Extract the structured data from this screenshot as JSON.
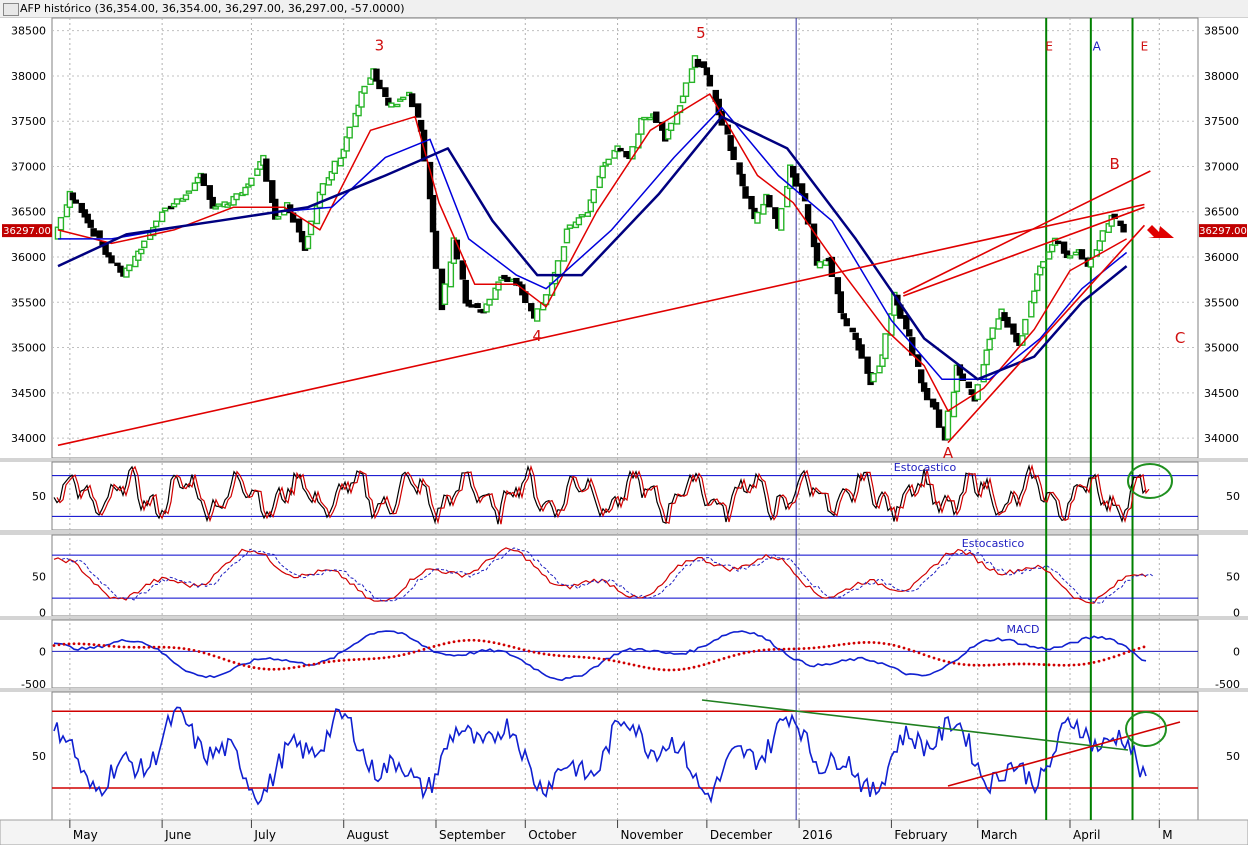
{
  "window": {
    "title": "AFP histórico (36,354.00, 36,354.00, 36,297.00, 36,297.00, -57.0000)"
  },
  "colors": {
    "up_bar": "#27b427",
    "down_bar": "#000000",
    "ema_fast": "#e00000",
    "ema_mid": "#0000dd",
    "ema_slow": "#000080",
    "trendline": "#e00000",
    "green_line": "#008000",
    "ref_line": "#0000cc"
  },
  "chart_data": [
    {
      "type": "candlestick",
      "title": "AFP histórico",
      "y_ticks": [
        34000,
        34500,
        35000,
        35500,
        36000,
        36500,
        37000,
        37500,
        38000,
        38500
      ],
      "ylim": [
        33780,
        38640
      ],
      "x_ticks": [
        "May",
        "June",
        "July",
        "August",
        "September",
        "October",
        "November",
        "December",
        "2016",
        "February",
        "March",
        "April",
        "M"
      ],
      "last_price_label": "36297.00",
      "price_path": [
        [
          "2015-04-27",
          36200
        ],
        [
          "2015-05-02",
          36700
        ],
        [
          "2015-05-08",
          36400
        ],
        [
          "2015-05-14",
          36050
        ],
        [
          "2015-05-20",
          35800
        ],
        [
          "2015-05-26",
          36100
        ],
        [
          "2015-06-02",
          36500
        ],
        [
          "2015-06-09",
          36650
        ],
        [
          "2015-06-15",
          36900
        ],
        [
          "2015-06-19",
          36550
        ],
        [
          "2015-06-25",
          36600
        ],
        [
          "2015-06-30",
          36750
        ],
        [
          "2015-07-06",
          37100
        ],
        [
          "2015-07-10",
          36400
        ],
        [
          "2015-07-14",
          36600
        ],
        [
          "2015-07-20",
          36100
        ],
        [
          "2015-07-25",
          36700
        ],
        [
          "2015-08-02",
          37200
        ],
        [
          "2015-08-08",
          37800
        ],
        [
          "2015-08-12",
          38050
        ],
        [
          "2015-08-17",
          37650
        ],
        [
          "2015-08-24",
          37800
        ],
        [
          "2015-08-28",
          37400
        ],
        [
          "2015-09-01",
          36300
        ],
        [
          "2015-09-04",
          35450
        ],
        [
          "2015-09-08",
          36200
        ],
        [
          "2015-09-12",
          35500
        ],
        [
          "2015-09-18",
          35400
        ],
        [
          "2015-09-24",
          35800
        ],
        [
          "2015-09-30",
          35700
        ],
        [
          "2015-10-05",
          35300
        ],
        [
          "2015-10-08",
          35500
        ],
        [
          "2015-10-12",
          35800
        ],
        [
          "2015-10-16",
          36300
        ],
        [
          "2015-10-23",
          36500
        ],
        [
          "2015-10-28",
          37000
        ],
        [
          "2015-11-02",
          37200
        ],
        [
          "2015-11-06",
          37100
        ],
        [
          "2015-11-10",
          37500
        ],
        [
          "2015-11-14",
          37600
        ],
        [
          "2015-11-18",
          37300
        ],
        [
          "2015-11-24",
          37800
        ],
        [
          "2015-11-28",
          38200
        ],
        [
          "2015-12-02",
          38000
        ],
        [
          "2015-12-06",
          37600
        ],
        [
          "2015-12-10",
          37200
        ],
        [
          "2015-12-14",
          36800
        ],
        [
          "2015-12-18",
          36400
        ],
        [
          "2015-12-22",
          36700
        ],
        [
          "2015-12-26",
          36300
        ],
        [
          "2015-12-30",
          37000
        ],
        [
          "2016-01-04",
          36600
        ],
        [
          "2016-01-08",
          35900
        ],
        [
          "2016-01-12",
          36000
        ],
        [
          "2016-01-16",
          35400
        ],
        [
          "2016-01-22",
          35000
        ],
        [
          "2016-01-26",
          34600
        ],
        [
          "2016-01-30",
          34900
        ],
        [
          "2016-02-03",
          35600
        ],
        [
          "2016-02-08",
          35100
        ],
        [
          "2016-02-12",
          34600
        ],
        [
          "2016-02-17",
          34300
        ],
        [
          "2016-02-20",
          34000
        ],
        [
          "2016-02-24",
          34800
        ],
        [
          "2016-03-01",
          34400
        ],
        [
          "2016-03-05",
          35000
        ],
        [
          "2016-03-10",
          35400
        ],
        [
          "2016-03-16",
          35000
        ],
        [
          "2016-03-22",
          35800
        ],
        [
          "2016-03-28",
          36200
        ],
        [
          "2016-04-01",
          36000
        ],
        [
          "2016-04-05",
          36100
        ],
        [
          "2016-04-08",
          35900
        ],
        [
          "2016-04-12",
          36200
        ],
        [
          "2016-04-16",
          36450
        ],
        [
          "2016-04-20",
          36300
        ]
      ],
      "series": [
        {
          "name": "",
          "color": "ema_fast",
          "points": [
            [
              "2015-04-27",
              36300
            ],
            [
              "2015-05-15",
              36150
            ],
            [
              "2015-06-05",
              36300
            ],
            [
              "2015-06-25",
              36550
            ],
            [
              "2015-07-12",
              36550
            ],
            [
              "2015-07-24",
              36300
            ],
            [
              "2015-08-10",
              37400
            ],
            [
              "2015-08-25",
              37550
            ],
            [
              "2015-09-02",
              36600
            ],
            [
              "2015-09-14",
              35700
            ],
            [
              "2015-09-28",
              35700
            ],
            [
              "2015-10-08",
              35450
            ],
            [
              "2015-10-25",
              36500
            ],
            [
              "2015-11-12",
              37400
            ],
            [
              "2015-12-02",
              37800
            ],
            [
              "2015-12-18",
              36900
            ],
            [
              "2015-12-30",
              36600
            ],
            [
              "2016-01-14",
              35900
            ],
            [
              "2016-01-30",
              35200
            ],
            [
              "2016-02-12",
              34800
            ],
            [
              "2016-02-20",
              34300
            ],
            [
              "2016-03-03",
              34550
            ],
            [
              "2016-03-20",
              35200
            ],
            [
              "2016-04-01",
              35850
            ],
            [
              "2016-04-20",
              36200
            ]
          ]
        },
        {
          "name": "",
          "color": "ema_mid",
          "points": [
            [
              "2015-04-27",
              36200
            ],
            [
              "2015-05-15",
              36200
            ],
            [
              "2015-06-10",
              36350
            ],
            [
              "2015-07-10",
              36500
            ],
            [
              "2015-07-28",
              36550
            ],
            [
              "2015-08-15",
              37100
            ],
            [
              "2015-08-30",
              37300
            ],
            [
              "2015-09-12",
              36200
            ],
            [
              "2015-09-28",
              35800
            ],
            [
              "2015-10-08",
              35650
            ],
            [
              "2015-10-30",
              36300
            ],
            [
              "2015-11-20",
              37100
            ],
            [
              "2015-12-06",
              37650
            ],
            [
              "2015-12-25",
              36900
            ],
            [
              "2016-01-12",
              36400
            ],
            [
              "2016-02-01",
              35300
            ],
            [
              "2016-02-18",
              34650
            ],
            [
              "2016-03-05",
              34650
            ],
            [
              "2016-03-22",
              35100
            ],
            [
              "2016-04-05",
              35650
            ],
            [
              "2016-04-20",
              36050
            ]
          ]
        },
        {
          "name": "",
          "color": "ema_slow",
          "points": [
            [
              "2015-04-27",
              35900
            ],
            [
              "2015-05-20",
              36250
            ],
            [
              "2015-06-20",
              36400
            ],
            [
              "2015-07-20",
              36550
            ],
            [
              "2015-08-15",
              36900
            ],
            [
              "2015-09-05",
              37200
            ],
            [
              "2015-09-20",
              36400
            ],
            [
              "2015-10-05",
              35800
            ],
            [
              "2015-10-20",
              35800
            ],
            [
              "2015-11-15",
              36700
            ],
            [
              "2015-12-06",
              37550
            ],
            [
              "2015-12-28",
              37200
            ],
            [
              "2016-01-20",
              36200
            ],
            [
              "2016-02-12",
              35100
            ],
            [
              "2016-03-01",
              34650
            ],
            [
              "2016-03-20",
              34900
            ],
            [
              "2016-04-05",
              35500
            ],
            [
              "2016-04-20",
              35900
            ]
          ]
        }
      ],
      "trendlines": [
        {
          "from": [
            "2015-04-27",
            33920
          ],
          "to": [
            "2016-04-26",
            36580
          ]
        },
        {
          "from": [
            "2016-02-05",
            35600
          ],
          "to": [
            "2016-04-28",
            36950
          ]
        },
        {
          "from": [
            "2016-02-05",
            35570
          ],
          "to": [
            "2016-04-26",
            36550
          ]
        },
        {
          "from": [
            "2016-02-20",
            33950
          ],
          "to": [
            "2016-04-26",
            36350
          ]
        }
      ],
      "wave_labels": [
        {
          "text": "3",
          "date": "2015-08-13",
          "price": 38280
        },
        {
          "text": "5",
          "date": "2015-11-29",
          "price": 38420
        },
        {
          "text": "4",
          "date": "2015-10-05",
          "price": 35070
        },
        {
          "text": "A",
          "date": "2016-02-20",
          "price": 33780
        },
        {
          "text": "B",
          "date": "2016-04-16",
          "price": 36970
        },
        {
          "text": "C",
          "date": "2016-05-08",
          "price": 35050
        },
        {
          "text": "E",
          "date": "2016-03-25",
          "price": 38280
        },
        {
          "text": "A",
          "date": "2016-04-10",
          "price": 38280
        },
        {
          "text": "E",
          "date": "2016-04-26",
          "price": 38280
        }
      ]
    },
    {
      "type": "line",
      "title": "Estocastico",
      "y_tick_labels": [
        "50"
      ],
      "ylim": [
        0,
        100
      ],
      "ref_lines": [
        80,
        20
      ]
    },
    {
      "type": "line",
      "title": "Estocastico",
      "y_tick_labels": [
        "50",
        "0"
      ],
      "ylim": [
        -5,
        108
      ],
      "ref_lines": [
        80,
        20
      ]
    },
    {
      "type": "line",
      "title": "MACD",
      "y_tick_labels": [
        "0",
        "-500"
      ],
      "ylim": [
        -560,
        480
      ],
      "ref_lines": [
        0
      ]
    },
    {
      "type": "line",
      "title": "",
      "y_tick_labels": [
        "50"
      ],
      "ylim": [
        0,
        100
      ],
      "ref_lines": [
        85,
        25
      ]
    }
  ],
  "vertical_markers": {
    "blue_dates": [
      "2015-12-31"
    ],
    "green_dates": [
      "2016-03-24",
      "2016-04-08",
      "2016-04-22"
    ]
  }
}
